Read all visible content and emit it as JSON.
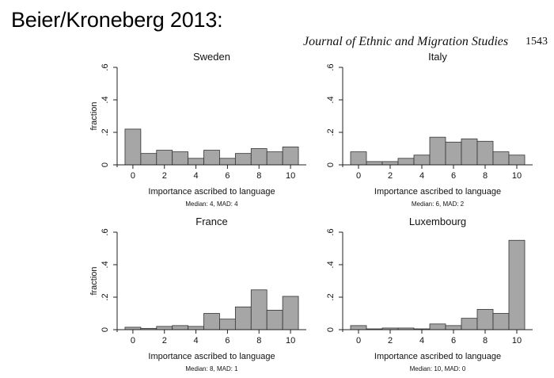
{
  "slide": {
    "title": "Beier/Kroneberg 2013:",
    "journal": "Journal of Ethnic and Migration Studies",
    "page_number": "1543"
  },
  "colors": {
    "bar_fill": "#a6a6a6",
    "bar_stroke": "#333333",
    "axis": "#222222"
  },
  "chart_data": [
    {
      "type": "bar",
      "title": "Sweden",
      "xlabel": "Importance ascribed to language",
      "ylabel": "fraction",
      "stats": "Median: 4, MAD: 4",
      "x": [
        0,
        1,
        2,
        3,
        4,
        5,
        6,
        7,
        8,
        9,
        10
      ],
      "values": [
        0.22,
        0.07,
        0.09,
        0.08,
        0.04,
        0.09,
        0.04,
        0.07,
        0.1,
        0.08,
        0.11
      ],
      "ylim": [
        0,
        0.6
      ],
      "xlim": [
        -1,
        11
      ],
      "xticks": [
        0,
        2,
        4,
        6,
        8,
        10
      ],
      "xtick_labels": [
        "0",
        "2",
        "4",
        "6",
        "8",
        "10"
      ],
      "yticks": [
        0,
        0.2,
        0.4,
        0.6
      ],
      "ytick_labels": [
        "0",
        ".2",
        ".4",
        ".6"
      ]
    },
    {
      "type": "bar",
      "title": "Italy",
      "xlabel": "Importance ascribed to language",
      "ylabel": "",
      "stats": "Median: 6, MAD: 2",
      "x": [
        0,
        1,
        2,
        3,
        4,
        5,
        6,
        7,
        8,
        9,
        10
      ],
      "values": [
        0.08,
        0.02,
        0.02,
        0.04,
        0.06,
        0.17,
        0.14,
        0.16,
        0.145,
        0.08,
        0.06
      ],
      "ylim": [
        0,
        0.6
      ],
      "xlim": [
        -1,
        11
      ],
      "xticks": [
        0,
        2,
        4,
        6,
        8,
        10
      ],
      "xtick_labels": [
        "0",
        "2",
        "4",
        "6",
        "8",
        "10"
      ],
      "yticks": [
        0,
        0.2,
        0.4,
        0.6
      ],
      "ytick_labels": [
        "0",
        ".2",
        ".4",
        ".6"
      ]
    },
    {
      "type": "bar",
      "title": "France",
      "xlabel": "Importance ascribed to language",
      "ylabel": "fraction",
      "stats": "Median: 8, MAD: 1",
      "x": [
        0,
        1,
        2,
        3,
        4,
        5,
        6,
        7,
        8,
        9,
        10
      ],
      "values": [
        0.015,
        0.008,
        0.02,
        0.025,
        0.02,
        0.1,
        0.065,
        0.14,
        0.245,
        0.12,
        0.205
      ],
      "ylim": [
        0,
        0.6
      ],
      "xlim": [
        -1,
        11
      ],
      "xticks": [
        0,
        2,
        4,
        6,
        8,
        10
      ],
      "xtick_labels": [
        "0",
        "2",
        "4",
        "6",
        "8",
        "10"
      ],
      "yticks": [
        0,
        0.2,
        0.4,
        0.6
      ],
      "ytick_labels": [
        "0",
        ".2",
        ".4",
        ".6"
      ]
    },
    {
      "type": "bar",
      "title": "Luxembourg",
      "xlabel": "Importance ascribed to language",
      "ylabel": "",
      "stats": "Median: 10, MAD: 0",
      "x": [
        0,
        1,
        2,
        3,
        4,
        5,
        6,
        7,
        8,
        9,
        10
      ],
      "values": [
        0.025,
        0.005,
        0.01,
        0.01,
        0.005,
        0.035,
        0.025,
        0.07,
        0.125,
        0.1,
        0.55
      ],
      "ylim": [
        0,
        0.6
      ],
      "xlim": [
        -1,
        11
      ],
      "xticks": [
        0,
        2,
        4,
        6,
        8,
        10
      ],
      "xtick_labels": [
        "0",
        "2",
        "4",
        "6",
        "8",
        "10"
      ],
      "yticks": [
        0,
        0.2,
        0.4,
        0.6
      ],
      "ytick_labels": [
        "0",
        ".2",
        ".4",
        ".6"
      ]
    }
  ]
}
